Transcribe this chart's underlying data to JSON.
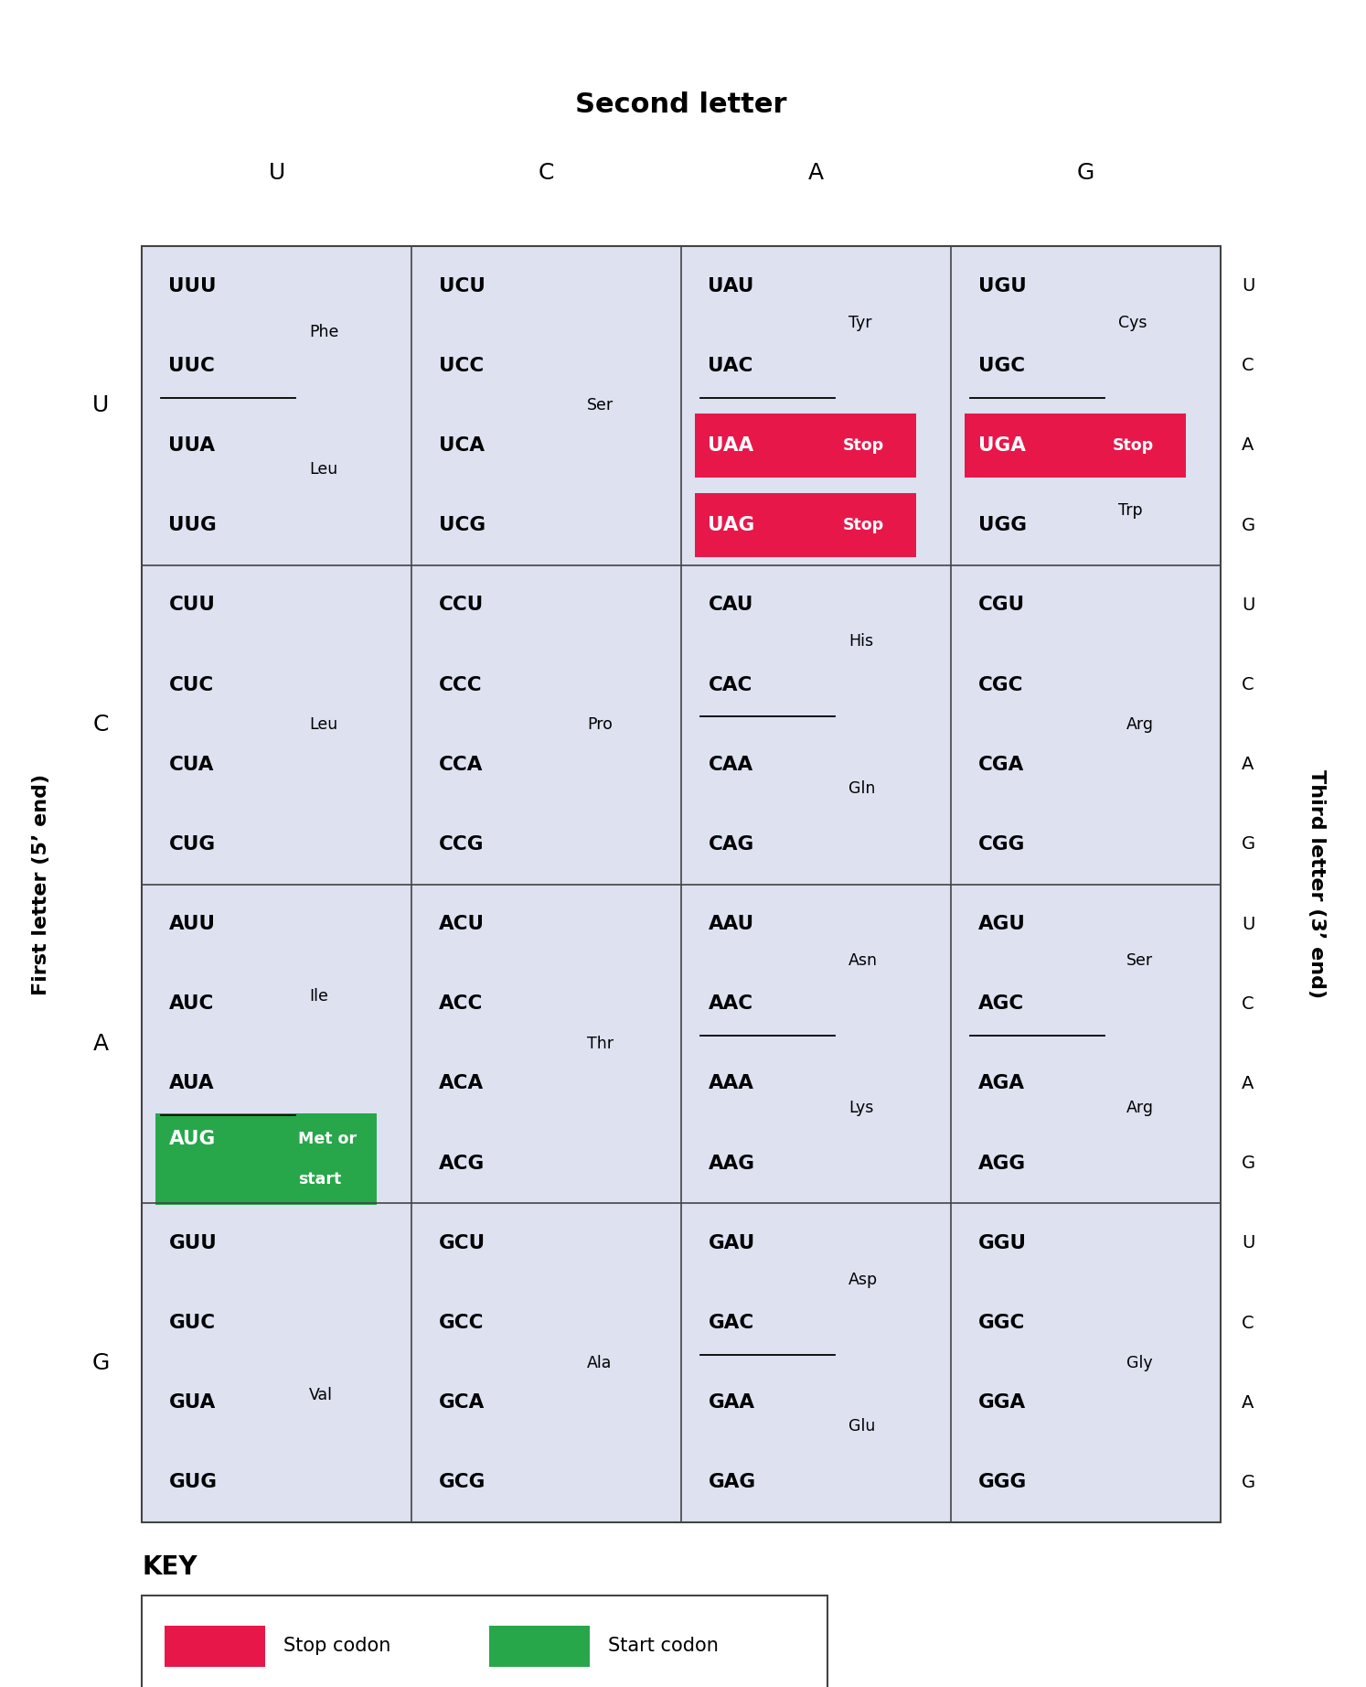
{
  "title_top": "Second letter",
  "title_left": "First letter (5’ end)",
  "title_right": "Third letter (3’ end)",
  "col_headers": [
    "U",
    "C",
    "A",
    "G"
  ],
  "row_headers": [
    "U",
    "C",
    "A",
    "G"
  ],
  "third_letters": [
    "U",
    "C",
    "A",
    "G"
  ],
  "bg_color": "#dde1f0",
  "stop_color": "#e8174a",
  "start_color": "#27a74a",
  "cells": [
    {
      "row": 0,
      "col": 0,
      "codons": [
        "UUU",
        "UUC",
        "UUA",
        "UUG"
      ],
      "underline": [
        false,
        true,
        false,
        false
      ],
      "amino": [
        [
          "Phe",
          1,
          2
        ],
        [
          "Leu",
          1,
          3
        ]
      ],
      "highlight": [
        null,
        null,
        null,
        null
      ]
    },
    {
      "row": 0,
      "col": 1,
      "codons": [
        "UCU",
        "UCC",
        "UCA",
        "UCG"
      ],
      "underline": [
        false,
        false,
        false,
        false
      ],
      "amino": [
        [
          "Ser",
          1,
          2
        ]
      ],
      "highlight": [
        null,
        null,
        null,
        null
      ]
    },
    {
      "row": 0,
      "col": 2,
      "codons": [
        "UAU",
        "UAC",
        "UAA",
        "UAG"
      ],
      "underline": [
        false,
        true,
        false,
        false
      ],
      "amino": [
        [
          "Tyr",
          1,
          2
        ]
      ],
      "highlight": [
        null,
        null,
        "stop",
        "stop"
      ]
    },
    {
      "row": 0,
      "col": 3,
      "codons": [
        "UGU",
        "UGC",
        "UGA",
        "UGG"
      ],
      "underline": [
        false,
        true,
        false,
        false
      ],
      "amino": [
        [
          "Cys",
          1,
          2
        ],
        [
          "Trp",
          1,
          3
        ]
      ],
      "highlight": [
        null,
        null,
        "stop",
        null
      ]
    },
    {
      "row": 1,
      "col": 0,
      "codons": [
        "CUU",
        "CUC",
        "CUA",
        "CUG"
      ],
      "underline": [
        false,
        false,
        false,
        false
      ],
      "amino": [
        [
          "Leu",
          1,
          2
        ]
      ],
      "highlight": [
        null,
        null,
        null,
        null
      ]
    },
    {
      "row": 1,
      "col": 1,
      "codons": [
        "CCU",
        "CCC",
        "CCA",
        "CCG"
      ],
      "underline": [
        false,
        false,
        false,
        false
      ],
      "amino": [
        [
          "Pro",
          1,
          2
        ]
      ],
      "highlight": [
        null,
        null,
        null,
        null
      ]
    },
    {
      "row": 1,
      "col": 2,
      "codons": [
        "CAU",
        "CAC",
        "CAA",
        "CAG"
      ],
      "underline": [
        false,
        true,
        false,
        false
      ],
      "amino": [
        [
          "His",
          1,
          2
        ],
        [
          "Gln",
          1,
          3
        ]
      ],
      "highlight": [
        null,
        null,
        null,
        null
      ]
    },
    {
      "row": 1,
      "col": 3,
      "codons": [
        "CGU",
        "CGC",
        "CGA",
        "CGG"
      ],
      "underline": [
        false,
        false,
        false,
        false
      ],
      "amino": [
        [
          "Arg",
          1,
          2
        ]
      ],
      "highlight": [
        null,
        null,
        null,
        null
      ]
    },
    {
      "row": 2,
      "col": 0,
      "codons": [
        "AUU",
        "AUC",
        "AUA",
        "AUG"
      ],
      "underline": [
        false,
        false,
        true,
        false
      ],
      "amino": [
        [
          "Ile",
          1,
          2
        ]
      ],
      "highlight": [
        null,
        null,
        null,
        "start"
      ]
    },
    {
      "row": 2,
      "col": 1,
      "codons": [
        "ACU",
        "ACC",
        "ACA",
        "ACG"
      ],
      "underline": [
        false,
        false,
        false,
        false
      ],
      "amino": [
        [
          "Thr",
          1,
          2
        ]
      ],
      "highlight": [
        null,
        null,
        null,
        null
      ]
    },
    {
      "row": 2,
      "col": 2,
      "codons": [
        "AAU",
        "AAC",
        "AAA",
        "AAG"
      ],
      "underline": [
        false,
        true,
        false,
        false
      ],
      "amino": [
        [
          "Asn",
          1,
          2
        ],
        [
          "Lys",
          1,
          3
        ]
      ],
      "highlight": [
        null,
        null,
        null,
        null
      ]
    },
    {
      "row": 2,
      "col": 3,
      "codons": [
        "AGU",
        "AGC",
        "AGA",
        "AGG"
      ],
      "underline": [
        false,
        true,
        false,
        false
      ],
      "amino": [
        [
          "Ser",
          1,
          2
        ],
        [
          "Arg",
          1,
          3
        ]
      ],
      "highlight": [
        null,
        null,
        null,
        null
      ]
    },
    {
      "row": 3,
      "col": 0,
      "codons": [
        "GUU",
        "GUC",
        "GUA",
        "GUG"
      ],
      "underline": [
        false,
        false,
        false,
        false
      ],
      "amino": [
        [
          "Val",
          1,
          2
        ]
      ],
      "highlight": [
        null,
        null,
        null,
        null
      ]
    },
    {
      "row": 3,
      "col": 1,
      "codons": [
        "GCU",
        "GCC",
        "GCA",
        "GCG"
      ],
      "underline": [
        false,
        false,
        false,
        false
      ],
      "amino": [
        [
          "Ala",
          1,
          2
        ]
      ],
      "highlight": [
        null,
        null,
        null,
        null
      ]
    },
    {
      "row": 3,
      "col": 2,
      "codons": [
        "GAU",
        "GAC",
        "GAA",
        "GAG"
      ],
      "underline": [
        false,
        true,
        false,
        false
      ],
      "amino": [
        [
          "Asp",
          1,
          2
        ],
        [
          "Glu",
          1,
          3
        ]
      ],
      "highlight": [
        null,
        null,
        null,
        null
      ]
    },
    {
      "row": 3,
      "col": 3,
      "codons": [
        "GGU",
        "GGC",
        "GGA",
        "GGG"
      ],
      "underline": [
        false,
        false,
        false,
        false
      ],
      "amino": [
        [
          "Gly",
          1,
          2
        ]
      ],
      "highlight": [
        null,
        null,
        null,
        null
      ]
    }
  ],
  "key_stop_color": "#e8174a",
  "key_start_color": "#27a74a",
  "key_stop_label": "Stop codon",
  "key_start_label": "Start codon",
  "key_title": "KEY"
}
